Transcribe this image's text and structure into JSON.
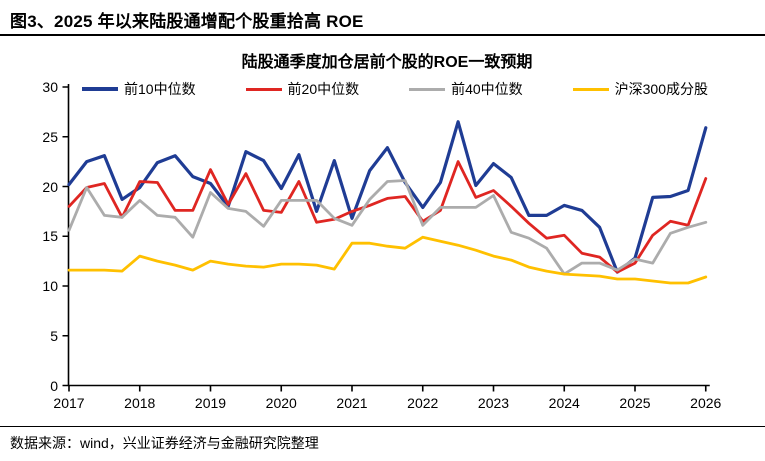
{
  "page": {
    "title": "图3、2025 年以来陆股通增配个股重拾高 ROE",
    "source_note": "数据来源：wind，兴业证券经济与金融研究院整理"
  },
  "chart_data": {
    "type": "line",
    "title": "陆股通季度加仓居前个股的ROE一致预期",
    "xlabel": "",
    "ylabel": "",
    "ylim": [
      0,
      30
    ],
    "y_ticks": [
      0,
      5,
      10,
      15,
      20,
      25,
      30
    ],
    "grid": "off",
    "legend_position": "top",
    "x_tick_labels": [
      "2017",
      "2018",
      "2019",
      "2020",
      "2021",
      "2022",
      "2023",
      "2024",
      "2025",
      "2026"
    ],
    "x": [
      "2017Q1",
      "2017Q2",
      "2017Q3",
      "2017Q4",
      "2018Q1",
      "2018Q2",
      "2018Q3",
      "2018Q4",
      "2019Q1",
      "2019Q2",
      "2019Q3",
      "2019Q4",
      "2020Q1",
      "2020Q2",
      "2020Q3",
      "2020Q4",
      "2021Q1",
      "2021Q2",
      "2021Q3",
      "2021Q4",
      "2022Q1",
      "2022Q2",
      "2022Q3",
      "2022Q4",
      "2023Q1",
      "2023Q2",
      "2023Q3",
      "2023Q4",
      "2024Q1",
      "2024Q2",
      "2024Q3",
      "2024Q4",
      "2025Q1",
      "2025Q2",
      "2025Q3",
      "2025Q4",
      "2026Q1"
    ],
    "series": [
      {
        "name": "前10中位数",
        "color": "#1f3c94",
        "values": [
          20.2,
          22.5,
          23.1,
          18.7,
          19.9,
          22.4,
          23.1,
          21.0,
          20.3,
          18.0,
          23.5,
          22.6,
          19.8,
          23.2,
          17.5,
          22.6,
          16.8,
          21.6,
          23.9,
          20.4,
          17.9,
          20.4,
          26.5,
          20.1,
          22.3,
          20.9,
          17.1,
          17.1,
          18.1,
          17.6,
          15.9,
          11.4,
          12.8,
          18.9,
          19.0,
          19.6,
          25.9
        ]
      },
      {
        "name": "前20中位数",
        "color": "#df2622",
        "values": [
          18.0,
          19.9,
          20.3,
          16.9,
          20.5,
          20.4,
          17.6,
          17.6,
          21.7,
          18.2,
          21.3,
          17.6,
          17.4,
          20.5,
          16.4,
          16.7,
          17.5,
          18.1,
          18.8,
          19.0,
          16.5,
          17.6,
          22.5,
          18.9,
          19.6,
          18.0,
          16.3,
          14.8,
          15.1,
          13.3,
          12.9,
          11.4,
          12.3,
          15.1,
          16.5,
          16.1,
          20.8
        ]
      },
      {
        "name": "前40中位数",
        "color": "#acacac",
        "values": [
          15.6,
          19.9,
          17.1,
          16.9,
          18.6,
          17.1,
          16.9,
          14.9,
          19.4,
          17.8,
          17.5,
          16.0,
          18.6,
          18.6,
          18.6,
          16.8,
          16.1,
          18.7,
          20.5,
          20.6,
          16.1,
          17.9,
          17.9,
          17.9,
          19.1,
          15.4,
          14.8,
          13.8,
          11.2,
          12.3,
          12.3,
          11.6,
          12.7,
          12.3,
          15.3,
          15.9,
          16.4
        ]
      },
      {
        "name": "沪深300成分股",
        "color": "#ffc000",
        "values": [
          11.6,
          11.6,
          11.6,
          11.5,
          13.0,
          12.5,
          12.1,
          11.6,
          12.5,
          12.2,
          12.0,
          11.9,
          12.2,
          12.2,
          12.1,
          11.7,
          14.3,
          14.3,
          14.0,
          13.8,
          14.9,
          14.5,
          14.1,
          13.6,
          13.0,
          12.6,
          11.9,
          11.5,
          11.2,
          11.1,
          11.0,
          10.7,
          10.7,
          10.5,
          10.3,
          10.3,
          10.9
        ]
      }
    ],
    "axis_color": "#000000"
  }
}
